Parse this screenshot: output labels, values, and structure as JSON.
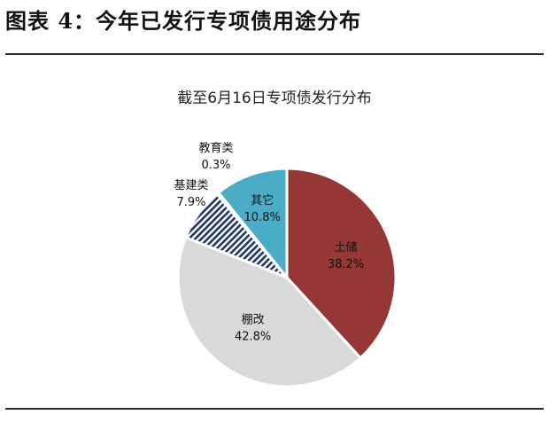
{
  "page": {
    "title": "图表 4：今年已发行专项债用途分布"
  },
  "chart_data": {
    "type": "pie",
    "title": "截至6月16日专项债发行分布",
    "slices": [
      {
        "name": "土储",
        "value": 38.2,
        "label": "38.2%",
        "color": "#953735",
        "pattern": "solid",
        "text_color": "dark"
      },
      {
        "name": "棚改",
        "value": 42.8,
        "label": "42.8%",
        "color": "#d9d9d9",
        "pattern": "solid",
        "text_color": "dark"
      },
      {
        "name": "基建类",
        "value": 7.9,
        "label": "7.9%",
        "color": "#1f3864",
        "pattern": "hatch",
        "text_color": "dark"
      },
      {
        "name": "教育类",
        "value": 0.3,
        "label": "0.3%",
        "color": "#4f81bd",
        "pattern": "solid",
        "text_color": "dark"
      },
      {
        "name": "其它",
        "value": 10.8,
        "label": "10.8%",
        "color": "#4bacc6",
        "pattern": "solid",
        "text_color": "dark"
      }
    ]
  }
}
